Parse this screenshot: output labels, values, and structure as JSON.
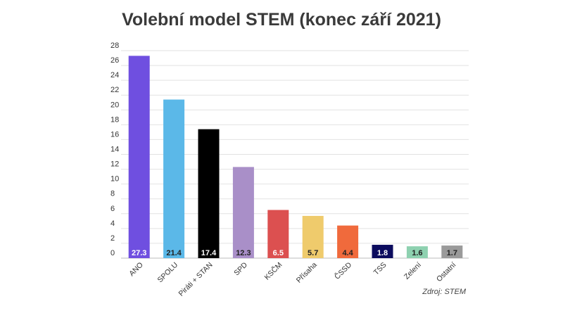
{
  "chart_data": {
    "type": "bar",
    "title": "Volební model STEM (konec září 2021)",
    "source": "Zdroj: STEM",
    "xlabel": "",
    "ylabel": "",
    "ylim": [
      0,
      28
    ],
    "y_ticks": [
      0,
      2,
      4,
      6,
      8,
      10,
      12,
      14,
      16,
      18,
      20,
      22,
      24,
      26,
      28
    ],
    "grid": true,
    "legend": "none",
    "categories": [
      "ANO",
      "SPOLU",
      "Piráti + STAN",
      "SPD",
      "KSČM",
      "Přísaha",
      "ČSSD",
      "TSS",
      "Zelení",
      "Ostatní"
    ],
    "values": [
      27.3,
      21.4,
      17.4,
      12.3,
      6.5,
      5.7,
      4.4,
      1.8,
      1.6,
      1.7
    ],
    "value_labels": [
      "27.3",
      "21.4",
      "17.4",
      "12.3",
      "6.5",
      "5.7",
      "4.4",
      "1.8",
      "1.6",
      "1.7"
    ],
    "colors": [
      "#6f4fe0",
      "#5bb8e8",
      "#000000",
      "#a98fc8",
      "#dc5050",
      "#efcb6c",
      "#f06a3c",
      "#0c0c5e",
      "#8ed1b0",
      "#9a9a9a"
    ],
    "value_label_colors": [
      "#ffffff",
      "#222222",
      "#ffffff",
      "#222222",
      "#ffffff",
      "#222222",
      "#222222",
      "#ffffff",
      "#222222",
      "#222222"
    ]
  }
}
